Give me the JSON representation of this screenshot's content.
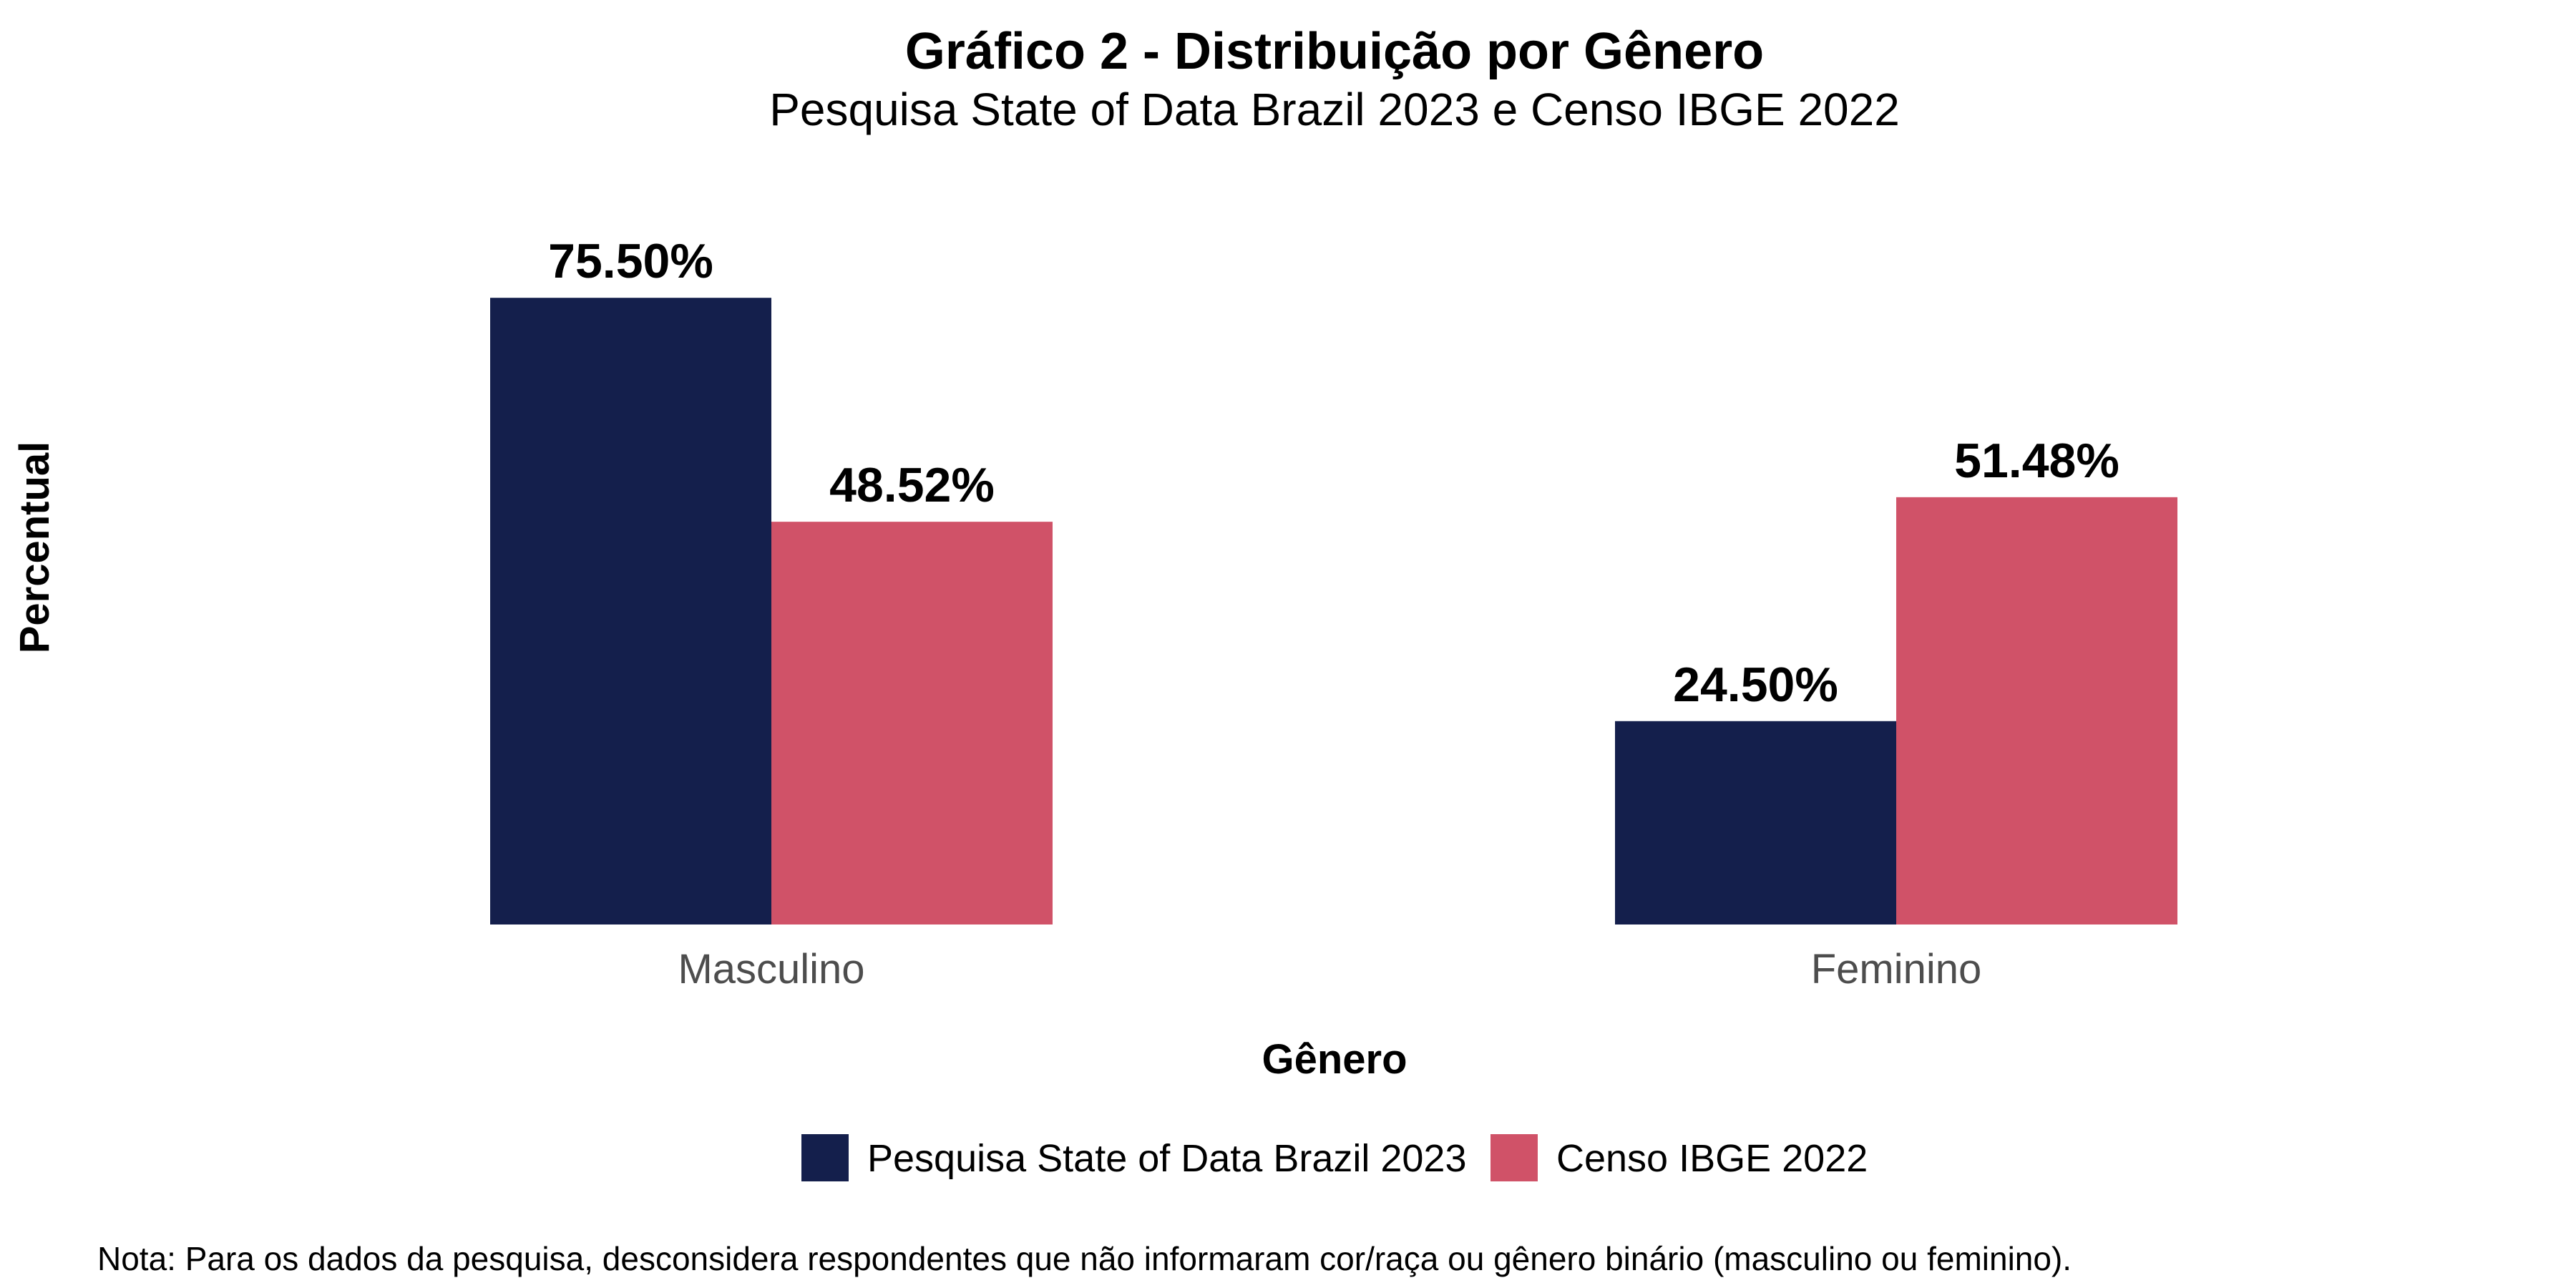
{
  "chart_data": {
    "type": "bar",
    "title": "Gráfico 2 - Distribuição por Gênero",
    "subtitle": "Pesquisa State of Data Brazil 2023 e Censo IBGE 2022",
    "xlabel": "Gênero",
    "ylabel": "Percentual",
    "categories": [
      "Masculino",
      "Feminino"
    ],
    "series": [
      {
        "name": "Pesquisa State of Data Brazil 2023",
        "color": "#141f4c",
        "values": [
          75.5,
          24.5
        ],
        "labels": [
          "75.50%",
          "24.50%"
        ]
      },
      {
        "name": "Censo IBGE 2022",
        "color": "#d05268",
        "values": [
          48.52,
          51.48
        ],
        "labels": [
          "48.52%",
          "51.48%"
        ]
      }
    ],
    "ylim": [
      0,
      80
    ],
    "grid": false,
    "legend_position": "bottom",
    "note": "Nota: Para os dados da pesquisa, desconsidera respondentes que não informaram cor/raça ou gênero binário (masculino ou feminino)."
  }
}
